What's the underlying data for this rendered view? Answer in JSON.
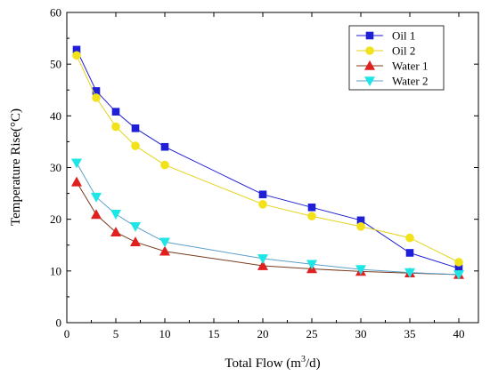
{
  "chart_data": {
    "type": "line",
    "xlabel": "Total Flow (m",
    "xlabel_sup": "3",
    "xlabel_end": "/d)",
    "ylabel": "Temperature Rise(°C)",
    "xlim": [
      0,
      42
    ],
    "ylim": [
      0,
      60
    ],
    "xticks": [
      0,
      5,
      10,
      15,
      20,
      25,
      30,
      35,
      40
    ],
    "yticks": [
      0,
      10,
      20,
      30,
      40,
      50,
      60
    ],
    "legend_position": "top-right",
    "series": [
      {
        "name": "Oil 1",
        "marker": "square",
        "color": "#1f1fd6",
        "x": [
          1,
          3,
          5,
          7,
          10,
          20,
          25,
          30,
          35,
          40
        ],
        "y": [
          52.8,
          44.8,
          40.8,
          37.6,
          34.0,
          24.8,
          22.3,
          19.8,
          13.5,
          10.5
        ]
      },
      {
        "name": "Oil 2",
        "marker": "circle",
        "color": "#f2e21a",
        "x": [
          1,
          3,
          5,
          7,
          10,
          20,
          25,
          30,
          35,
          40
        ],
        "y": [
          51.7,
          43.5,
          37.9,
          34.2,
          30.5,
          22.9,
          20.6,
          18.6,
          16.4,
          11.7
        ]
      },
      {
        "name": "Water 1",
        "marker": "triangle-up",
        "color": "#e01f1f",
        "x": [
          1,
          3,
          5,
          7,
          10,
          20,
          25,
          30,
          35,
          40
        ],
        "y": [
          27.2,
          20.9,
          17.5,
          15.6,
          13.8,
          11.0,
          10.4,
          9.9,
          9.6,
          9.3
        ]
      },
      {
        "name": "Water 2",
        "marker": "triangle-down",
        "color": "#1ee6e6",
        "x": [
          1,
          3,
          5,
          7,
          10,
          20,
          25,
          30,
          35,
          40
        ],
        "y": [
          30.9,
          24.3,
          21.0,
          18.6,
          15.6,
          12.4,
          11.3,
          10.3,
          9.7,
          9.3
        ]
      }
    ]
  }
}
